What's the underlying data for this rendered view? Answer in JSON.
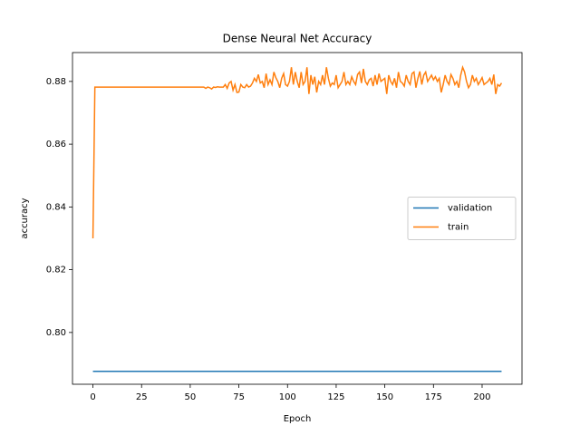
{
  "chart_data": {
    "type": "line",
    "title": "Dense Neural Net Accuracy",
    "x_label": "Epoch",
    "y_label": "accuracy",
    "xlim": [
      -10.5,
      220.5
    ],
    "ylim": [
      0.7835,
      0.8892
    ],
    "xticks": [
      0,
      25,
      50,
      75,
      100,
      125,
      150,
      175,
      200
    ],
    "yticks": [
      {
        "value": 0.8,
        "label": "0.80"
      },
      0.82,
      0.84,
      0.86,
      0.88
    ],
    "legend_position": "center right",
    "x": [
      0,
      1,
      2,
      3,
      4,
      5,
      6,
      7,
      8,
      9,
      10,
      11,
      12,
      13,
      14,
      15,
      16,
      17,
      18,
      19,
      20,
      21,
      22,
      23,
      24,
      25,
      26,
      27,
      28,
      29,
      30,
      31,
      32,
      33,
      34,
      35,
      36,
      37,
      38,
      39,
      40,
      41,
      42,
      43,
      44,
      45,
      46,
      47,
      48,
      49,
      50,
      51,
      52,
      53,
      54,
      55,
      56,
      57,
      58,
      59,
      60,
      61,
      62,
      63,
      64,
      65,
      66,
      67,
      68,
      69,
      70,
      71,
      72,
      73,
      74,
      75,
      76,
      77,
      78,
      79,
      80,
      81,
      82,
      83,
      84,
      85,
      86,
      87,
      88,
      89,
      90,
      91,
      92,
      93,
      94,
      95,
      96,
      97,
      98,
      99,
      100,
      101,
      102,
      103,
      104,
      105,
      106,
      107,
      108,
      109,
      110,
      111,
      112,
      113,
      114,
      115,
      116,
      117,
      118,
      119,
      120,
      121,
      122,
      123,
      124,
      125,
      126,
      127,
      128,
      129,
      130,
      131,
      132,
      133,
      134,
      135,
      136,
      137,
      138,
      139,
      140,
      141,
      142,
      143,
      144,
      145,
      146,
      147,
      148,
      149,
      150,
      151,
      152,
      153,
      154,
      155,
      156,
      157,
      158,
      159,
      160,
      161,
      162,
      163,
      164,
      165,
      166,
      167,
      168,
      169,
      170,
      171,
      172,
      173,
      174,
      175,
      176,
      177,
      178,
      179,
      180,
      181,
      182,
      183,
      184,
      185,
      186,
      187,
      188,
      189,
      190,
      191,
      192,
      193,
      194,
      195,
      196,
      197,
      198,
      199,
      200,
      201,
      202,
      203,
      204,
      205,
      206,
      207,
      208,
      209,
      210
    ],
    "series": [
      {
        "name": "validation",
        "color": "#1f77b4",
        "values": [
          0.7876,
          0.7876,
          0.7876,
          0.7876,
          0.7876,
          0.7876,
          0.7876,
          0.7876,
          0.7876,
          0.7876,
          0.7876,
          0.7876,
          0.7876,
          0.7876,
          0.7876,
          0.7876,
          0.7876,
          0.7876,
          0.7876,
          0.7876,
          0.7876,
          0.7876,
          0.7876,
          0.7876,
          0.7876,
          0.7876,
          0.7876,
          0.7876,
          0.7876,
          0.7876,
          0.7876,
          0.7876,
          0.7876,
          0.7876,
          0.7876,
          0.7876,
          0.7876,
          0.7876,
          0.7876,
          0.7876,
          0.7876,
          0.7876,
          0.7876,
          0.7876,
          0.7876,
          0.7876,
          0.7876,
          0.7876,
          0.7876,
          0.7876,
          0.7876,
          0.7876,
          0.7876,
          0.7876,
          0.7876,
          0.7876,
          0.7876,
          0.7876,
          0.7876,
          0.7876,
          0.7876,
          0.7876,
          0.7876,
          0.7876,
          0.7876,
          0.7876,
          0.7876,
          0.7876,
          0.7876,
          0.7876,
          0.7876,
          0.7876,
          0.7876,
          0.7876,
          0.7876,
          0.7876,
          0.7876,
          0.7876,
          0.7876,
          0.7876,
          0.7876,
          0.7876,
          0.7876,
          0.7876,
          0.7876,
          0.7876,
          0.7876,
          0.7876,
          0.7876,
          0.7876,
          0.7876,
          0.7876,
          0.7876,
          0.7876,
          0.7876,
          0.7876,
          0.7876,
          0.7876,
          0.7876,
          0.7876,
          0.7876,
          0.7876,
          0.7876,
          0.7876,
          0.7876,
          0.7876,
          0.7876,
          0.7876,
          0.7876,
          0.7876,
          0.7876,
          0.7876,
          0.7876,
          0.7876,
          0.7876,
          0.7876,
          0.7876,
          0.7876,
          0.7876,
          0.7876,
          0.7876,
          0.7876,
          0.7876,
          0.7876,
          0.7876,
          0.7876,
          0.7876,
          0.7876,
          0.7876,
          0.7876,
          0.7876,
          0.7876,
          0.7876,
          0.7876,
          0.7876,
          0.7876,
          0.7876,
          0.7876,
          0.7876,
          0.7876,
          0.7876,
          0.7876,
          0.7876,
          0.7876,
          0.7876,
          0.7876,
          0.7876,
          0.7876,
          0.7876,
          0.7876,
          0.7876,
          0.7876,
          0.7876,
          0.7876,
          0.7876,
          0.7876,
          0.7876,
          0.7876,
          0.7876,
          0.7876,
          0.7876,
          0.7876,
          0.7876,
          0.7876,
          0.7876,
          0.7876,
          0.7876,
          0.7876,
          0.7876,
          0.7876,
          0.7876,
          0.7876,
          0.7876,
          0.7876,
          0.7876,
          0.7876,
          0.7876,
          0.7876,
          0.7876,
          0.7876,
          0.7876,
          0.7876,
          0.7876,
          0.7876,
          0.7876,
          0.7876,
          0.7876,
          0.7876,
          0.7876,
          0.7876,
          0.7876,
          0.7876,
          0.7876,
          0.7876,
          0.7876,
          0.7876,
          0.7876,
          0.7876,
          0.7876,
          0.7876,
          0.7876,
          0.7876,
          0.7876,
          0.7876,
          0.7876,
          0.7876,
          0.7876,
          0.7876,
          0.7876,
          0.7876,
          0.7876
        ]
      },
      {
        "name": "train",
        "color": "#ff7f0e",
        "values": [
          0.83,
          0.8782,
          0.8782,
          0.8782,
          0.8782,
          0.8782,
          0.8782,
          0.8782,
          0.8782,
          0.8782,
          0.8782,
          0.8782,
          0.8782,
          0.8782,
          0.8782,
          0.8782,
          0.8782,
          0.8782,
          0.8782,
          0.8782,
          0.8782,
          0.8782,
          0.8782,
          0.8782,
          0.8782,
          0.8782,
          0.8782,
          0.8782,
          0.8782,
          0.8782,
          0.8782,
          0.8782,
          0.8782,
          0.8782,
          0.8782,
          0.8782,
          0.8782,
          0.8782,
          0.8782,
          0.8782,
          0.8782,
          0.8782,
          0.8782,
          0.8782,
          0.8782,
          0.8782,
          0.8782,
          0.8782,
          0.8782,
          0.8782,
          0.8782,
          0.8782,
          0.8782,
          0.8782,
          0.8782,
          0.8782,
          0.8782,
          0.8782,
          0.8778,
          0.8782,
          0.878,
          0.8776,
          0.8782,
          0.8781,
          0.8783,
          0.8782,
          0.8782,
          0.8782,
          0.879,
          0.8778,
          0.8795,
          0.88,
          0.8772,
          0.879,
          0.8765,
          0.8766,
          0.879,
          0.8782,
          0.878,
          0.879,
          0.8782,
          0.8785,
          0.8795,
          0.881,
          0.88,
          0.8822,
          0.8795,
          0.88,
          0.878,
          0.8825,
          0.879,
          0.8805,
          0.879,
          0.883,
          0.8812,
          0.88,
          0.878,
          0.881,
          0.8825,
          0.879,
          0.8785,
          0.88,
          0.8845,
          0.879,
          0.883,
          0.88,
          0.878,
          0.883,
          0.879,
          0.88,
          0.8845,
          0.876,
          0.882,
          0.879,
          0.8815,
          0.8765,
          0.88,
          0.879,
          0.882,
          0.879,
          0.8845,
          0.881,
          0.8785,
          0.8795,
          0.879,
          0.882,
          0.878,
          0.879,
          0.88,
          0.883,
          0.879,
          0.88,
          0.879,
          0.8815,
          0.88,
          0.879,
          0.8822,
          0.883,
          0.8795,
          0.884,
          0.88,
          0.879,
          0.8805,
          0.881,
          0.8785,
          0.882,
          0.879,
          0.8825,
          0.88,
          0.8805,
          0.881,
          0.876,
          0.882,
          0.88,
          0.879,
          0.881,
          0.878,
          0.883,
          0.88,
          0.8795,
          0.8785,
          0.882,
          0.88,
          0.879,
          0.8825,
          0.883,
          0.878,
          0.881,
          0.8832,
          0.879,
          0.882,
          0.883,
          0.88,
          0.881,
          0.882,
          0.8805,
          0.8815,
          0.88,
          0.881,
          0.8765,
          0.879,
          0.882,
          0.88,
          0.879,
          0.8822,
          0.881,
          0.879,
          0.88,
          0.878,
          0.882,
          0.8845,
          0.883,
          0.88,
          0.878,
          0.879,
          0.882,
          0.88,
          0.881,
          0.879,
          0.88,
          0.8812,
          0.879,
          0.8795,
          0.88,
          0.881,
          0.879,
          0.8822,
          0.876,
          0.879,
          0.8785,
          0.8795
        ]
      }
    ]
  }
}
